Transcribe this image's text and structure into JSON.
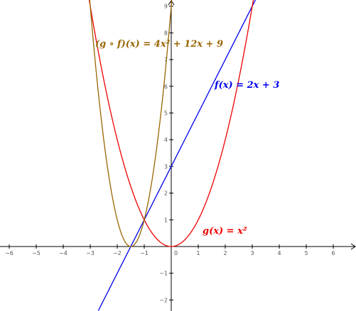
{
  "chart_data": {
    "type": "line",
    "title": "",
    "xlabel": "",
    "ylabel": "",
    "xlim": [
      -6.3,
      6.9
    ],
    "ylim": [
      -2.4,
      9.25
    ],
    "grid": false,
    "x_ticks": [
      -6,
      -5,
      -4,
      -3,
      -2,
      -1,
      0,
      1,
      2,
      3,
      4,
      5,
      6
    ],
    "y_ticks": [
      -2,
      -1,
      1,
      2,
      3,
      4,
      5,
      6,
      7,
      8,
      9
    ],
    "tick_labels": {
      "x": [
        "−6",
        "−5",
        "−4",
        "−3",
        "−2",
        "−1",
        "0",
        "1",
        "2",
        "3",
        "4",
        "5",
        "6"
      ],
      "y": [
        "−2",
        "−1",
        "1",
        "2",
        "3",
        "4",
        "5",
        "6",
        "7",
        "8",
        "9"
      ]
    },
    "series": [
      {
        "expression": "2x + 3",
        "label": "f(x) = 2x + 3",
        "color": "#0000ee",
        "x": [
          -2.7,
          -1.5,
          0,
          1.5,
          3.12
        ],
        "y": [
          -2.4,
          0,
          3,
          6,
          9.25
        ]
      },
      {
        "expression": "x^2",
        "label": "g(x) = x²",
        "color": "#ee0000",
        "x": [
          -3.05,
          -2,
          -1,
          0,
          1,
          2,
          3.05
        ],
        "y": [
          9.3,
          4,
          1,
          0,
          1,
          4,
          9.3
        ]
      },
      {
        "expression": "4x^2 + 12x + 9",
        "label": "(g ∘ f)(x) = 4x² + 12x + 9",
        "color": "#996600",
        "x": [
          -3.02,
          -2.5,
          -2,
          -1.5,
          -1,
          -0.5,
          0.02
        ],
        "y": [
          9.3,
          4,
          1,
          0,
          1,
          4,
          9.3
        ]
      }
    ]
  }
}
